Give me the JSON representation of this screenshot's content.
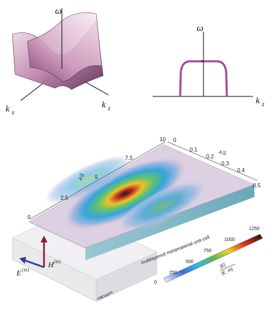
{
  "panel_a": {
    "omega": "ω",
    "kx": "k",
    "kx_sub": "x",
    "kz": "k",
    "kz_sub": "z"
  },
  "panel_b": {
    "omega": "ω",
    "kz": "k",
    "kz_sub": "z"
  },
  "panel_c": {
    "z_axis_label": "z/λ",
    "z_axis_sub": "0",
    "z_ticks": [
      "10",
      "7.5",
      "5",
      "2.5",
      "0"
    ],
    "x_axis_label": "x/λ",
    "x_axis_sub": "0",
    "x_ticks": [
      "0",
      "0.1",
      "0.2",
      "0.3",
      "0.4",
      "0.5"
    ],
    "colorbar_ticks": [
      "1250",
      "1000",
      "750",
      "500",
      "250",
      "0"
    ],
    "colorbar_label_num": "|E|",
    "colorbar_label_den": "|E_in|",
    "label_unit_cell": "multilayered metamaterial unit-cell",
    "label_vacuum": "vacuum",
    "H_label": "H",
    "H_sup": "(in)",
    "E_label": "E",
    "E_sup": "(in)"
  }
}
